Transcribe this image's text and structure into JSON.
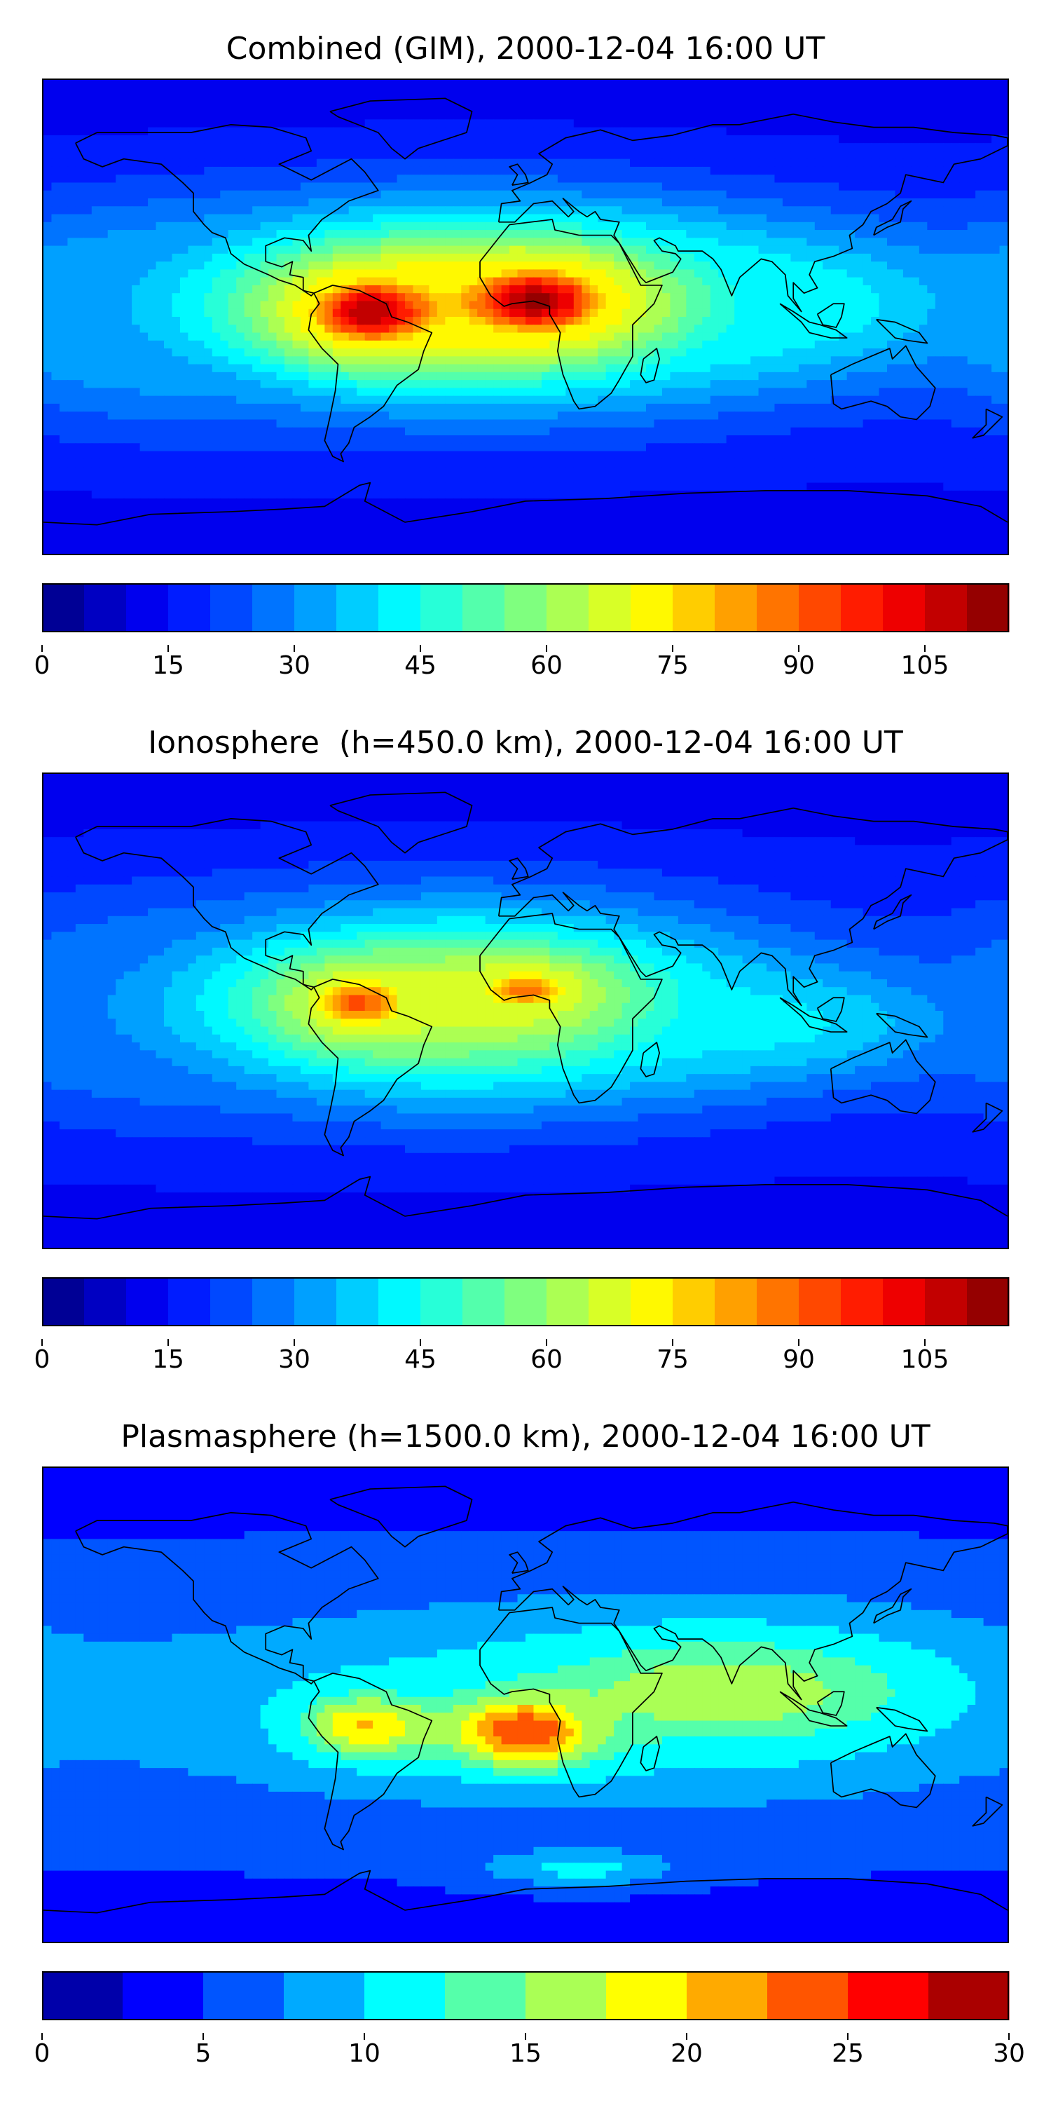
{
  "panels": [
    {
      "id": "combined",
      "title": "Combined (GIM), 2000-12-04 16:00 UT",
      "colorbar": {
        "min": 0,
        "max": 115,
        "levels": 23,
        "ticks": [
          "0",
          "15",
          "30",
          "45",
          "60",
          "75",
          "90",
          "105"
        ],
        "tick_values": [
          0,
          15,
          30,
          45,
          60,
          75,
          90,
          105
        ]
      },
      "background_value": 12,
      "features": [
        {
          "name": "south-america-max",
          "lon": -58,
          "lat": 2,
          "value": 110,
          "spread_lon": 22,
          "spread_lat": 12
        },
        {
          "name": "africa-max",
          "lon": 4,
          "lat": 6,
          "value": 112,
          "spread_lon": 25,
          "spread_lat": 12
        },
        {
          "name": "equatorial-band",
          "lon": -20,
          "lat": 5,
          "value": 75,
          "spread_lon": 80,
          "spread_lat": 25
        },
        {
          "name": "indian-ocean-band",
          "lon": 85,
          "lat": 5,
          "value": 45,
          "spread_lon": 60,
          "spread_lat": 18
        },
        {
          "name": "pacific-west-band",
          "lon": -150,
          "lat": 0,
          "value": 35,
          "spread_lon": 40,
          "spread_lat": 25
        }
      ]
    },
    {
      "id": "ionosphere",
      "title": "Ionosphere  (h=450.0 km), 2000-12-04 16:00 UT",
      "colorbar": {
        "min": 0,
        "max": 115,
        "levels": 23,
        "ticks": [
          "0",
          "15",
          "30",
          "45",
          "60",
          "75",
          "90",
          "105"
        ],
        "tick_values": [
          0,
          15,
          30,
          45,
          60,
          75,
          90,
          105
        ]
      },
      "background_value": 12,
      "features": [
        {
          "name": "south-america-max",
          "lon": -62,
          "lat": 3,
          "value": 92,
          "spread_lon": 18,
          "spread_lat": 10
        },
        {
          "name": "africa-max",
          "lon": 0,
          "lat": 8,
          "value": 88,
          "spread_lon": 18,
          "spread_lat": 8
        },
        {
          "name": "equatorial-band",
          "lon": -25,
          "lat": 3,
          "value": 68,
          "spread_lon": 75,
          "spread_lat": 25
        },
        {
          "name": "indian-ocean-band",
          "lon": 85,
          "lat": -5,
          "value": 42,
          "spread_lon": 55,
          "spread_lat": 15
        },
        {
          "name": "pacific-west-band",
          "lon": -150,
          "lat": 0,
          "value": 30,
          "spread_lon": 40,
          "spread_lat": 25
        }
      ]
    },
    {
      "id": "plasmasphere",
      "title": "Plasmasphere (h=1500.0 km), 2000-12-04 16:00 UT",
      "colorbar": {
        "min": 0,
        "max": 30,
        "levels": 12,
        "ticks": [
          "0",
          "5",
          "10",
          "15",
          "20",
          "25",
          "30"
        ],
        "tick_values": [
          0,
          5,
          10,
          15,
          20,
          25,
          30
        ]
      },
      "background_value": 4,
      "features": [
        {
          "name": "south-america-max",
          "lon": -60,
          "lat": -8,
          "value": 20,
          "spread_lon": 20,
          "spread_lat": 10
        },
        {
          "name": "africa-max",
          "lon": 0,
          "lat": -10,
          "value": 25,
          "spread_lon": 22,
          "spread_lat": 11
        },
        {
          "name": "asia-band",
          "lon": 75,
          "lat": 5,
          "value": 17,
          "spread_lon": 60,
          "spread_lat": 18
        },
        {
          "name": "equatorial-band",
          "lon": 10,
          "lat": 0,
          "value": 11,
          "spread_lon": 120,
          "spread_lat": 25
        },
        {
          "name": "southern-ocean-patch",
          "lon": 20,
          "lat": -62,
          "value": 11,
          "spread_lon": 25,
          "spread_lat": 5
        }
      ]
    }
  ],
  "colors": {
    "jet_stops": [
      "#00007f",
      "#0000ff",
      "#007fff",
      "#00ffff",
      "#7fff7f",
      "#ffff00",
      "#ff7f00",
      "#ff0000",
      "#7f0000"
    ],
    "coastline": "#000000"
  }
}
